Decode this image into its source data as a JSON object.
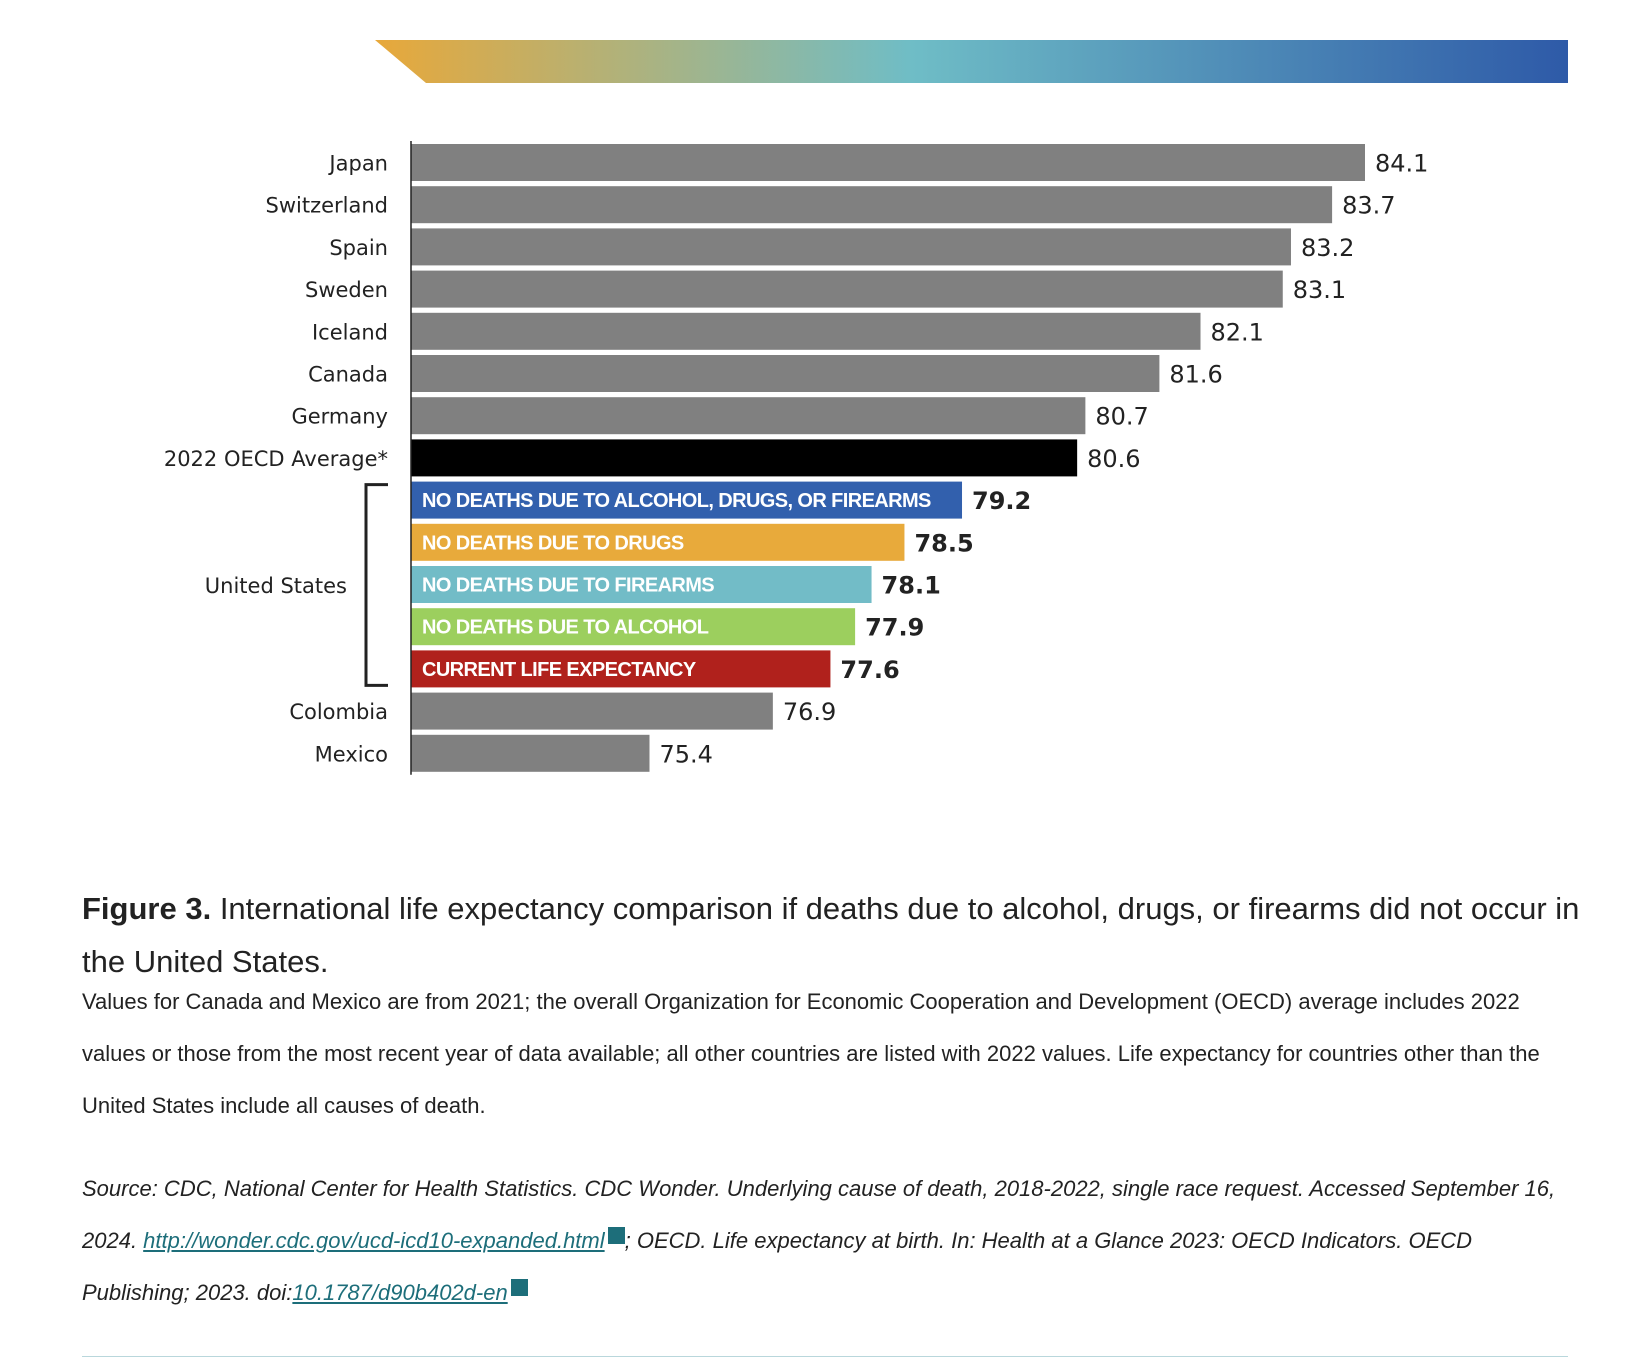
{
  "chart_data": {
    "type": "bar",
    "orientation": "horizontal",
    "xlim": [
      72.5,
      85.0
    ],
    "grid": false,
    "categories": [
      "Japan",
      "Switzerland",
      "Spain",
      "Sweden",
      "Iceland",
      "Canada",
      "Germany",
      "2022 OECD Average*",
      "NO DEATHS DUE TO ALCOHOL, DRUGS, OR FIREARMS",
      "NO DEATHS DUE TO DRUGS",
      "NO DEATHS DUE TO FIREARMS",
      "NO DEATHS DUE TO ALCOHOL",
      "CURRENT LIFE EXPECTANCY",
      "Colombia",
      "Mexico"
    ],
    "values": [
      84.1,
      83.7,
      83.2,
      83.1,
      82.1,
      81.6,
      80.7,
      80.6,
      79.2,
      78.5,
      78.1,
      77.9,
      77.6,
      76.9,
      75.4
    ],
    "value_labels": [
      "84.1",
      "83.7",
      "83.2",
      "83.1",
      "82.1",
      "81.6",
      "80.7",
      "80.6",
      "79.2",
      "78.5",
      "78.1",
      "77.9",
      "77.6",
      "76.9",
      "75.4"
    ],
    "label_inside": [
      false,
      false,
      false,
      false,
      false,
      false,
      false,
      false,
      true,
      true,
      true,
      true,
      true,
      false,
      false
    ],
    "colors": [
      "#808080",
      "#808080",
      "#808080",
      "#808080",
      "#808080",
      "#808080",
      "#808080",
      "#000000",
      "#3260ad",
      "#e8aa3b",
      "#72bcc7",
      "#9ccf5e",
      "#b0211c",
      "#808080",
      "#808080"
    ],
    "value_colors": [
      "#222222",
      "#222222",
      "#222222",
      "#222222",
      "#222222",
      "#222222",
      "#222222",
      "#222222",
      "#3260ad",
      "#e8aa3b",
      "#72bcc7",
      "#9ccf5e",
      "#b0211c",
      "#222222",
      "#222222"
    ],
    "value_bold": [
      false,
      false,
      false,
      false,
      false,
      false,
      false,
      false,
      true,
      true,
      true,
      true,
      true,
      false,
      false
    ],
    "group_label": "United States",
    "group_range": [
      8,
      12
    ]
  },
  "banner": {
    "gradient_colors": [
      "#e8a83a",
      "#6fbdc6",
      "#2e5aa8"
    ]
  },
  "caption": {
    "figure_label": "Figure 3.",
    "title": " International life expectancy comparison if deaths due to alcohol, drugs, or firearms did not occur in the United States.",
    "note": "Values for Canada and Mexico are from 2021; the overall Organization for Economic Cooperation and Development (OECD) average includes 2022 values or those from the most recent year of data available; all other countries are listed with 2022 values. Life expectancy for countries other than the United States include all causes of death.",
    "source_part1": "Source: CDC, National Center for Health Statistics. CDC Wonder. Underlying cause of death, 2018-2022, single race request. Accessed September 16, 2024. ",
    "source_link1": "http://wonder.cdc.gov/ucd-icd10-expanded.html",
    "source_part2": "; OECD. Life expectancy at birth. In: Health at a Glance 2023: OECD Indicators. OECD Publishing; 2023. doi:",
    "source_link2": "10.1787/d90b402d-en"
  },
  "icons": {
    "external_link": "external-link-icon"
  }
}
